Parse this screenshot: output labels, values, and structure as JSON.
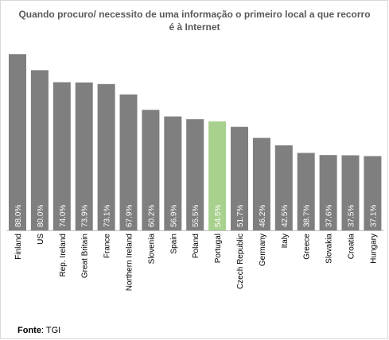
{
  "chart_data": {
    "type": "bar",
    "title": "Quando procuro/ necessito de uma informação o primeiro local a que recorro é à Internet",
    "categories": [
      "Finland",
      "US",
      "Rep. Ireland",
      "Great Britain",
      "France",
      "Northern Ireland",
      "Slovenia",
      "Spain",
      "Poland",
      "Portugal",
      "Czech Republic",
      "Germany",
      "Italy",
      "Greece",
      "Slovakia",
      "Croatia",
      "Hungary"
    ],
    "values": [
      88.0,
      80.0,
      74.0,
      73.9,
      73.1,
      67.9,
      60.2,
      56.9,
      55.5,
      54.5,
      51.7,
      46.2,
      42.5,
      38.7,
      37.6,
      37.5,
      37.1
    ],
    "value_labels": [
      "88.0%",
      "80.0%",
      "74.0%",
      "73.9%",
      "73.1%",
      "67.9%",
      "60.2%",
      "56.9%",
      "55.5%",
      "54.5%",
      "51.7%",
      "46.2%",
      "42.5%",
      "38.7%",
      "37.6%",
      "37.5%",
      "37.1%"
    ],
    "highlight": "Portugal",
    "colors": {
      "bar": "#7f7f7f",
      "highlight": "#a9d18e",
      "label": "#ffffff",
      "axis": "#bfbfbf",
      "category_text": "#000000"
    },
    "ylim": [
      0,
      100
    ],
    "grid": false,
    "legend": "none"
  },
  "source": {
    "label": "Fonte",
    "value": ": TGI"
  }
}
